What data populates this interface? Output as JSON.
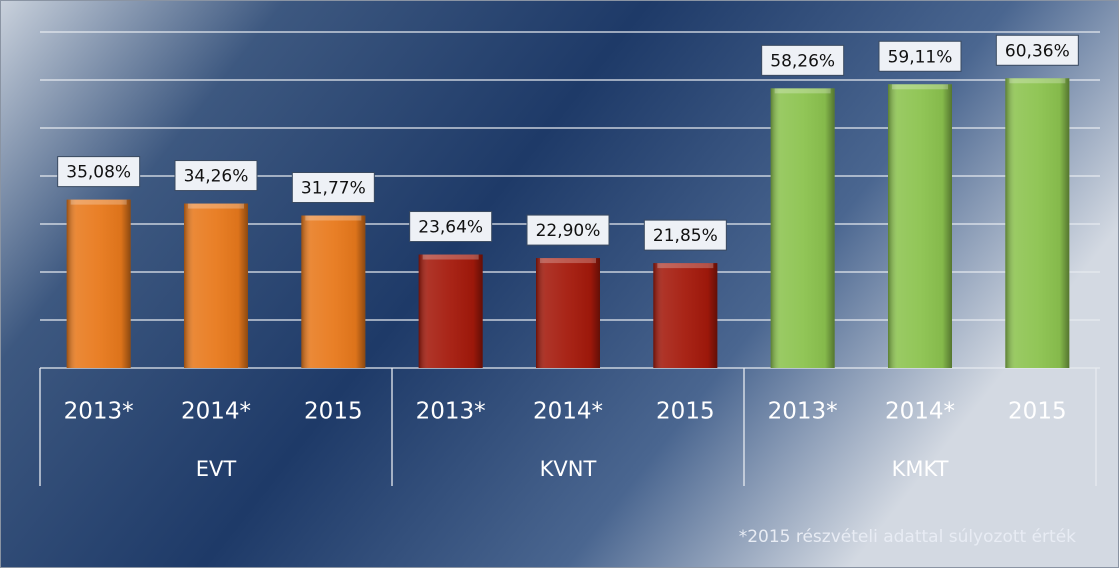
{
  "chart_data": {
    "type": "bar",
    "categories": [
      "2013*",
      "2014*",
      "2015"
    ],
    "series": [
      {
        "name": "EVT",
        "color": "#e8791c",
        "values": [
          35.08,
          34.26,
          31.77
        ],
        "value_labels": [
          "35,08%",
          "34,26%",
          "31,77%"
        ]
      },
      {
        "name": "KVNT",
        "color": "#a4190b",
        "values": [
          23.64,
          22.9,
          21.85
        ],
        "value_labels": [
          "23,64%",
          "22,90%",
          "21,85%"
        ]
      },
      {
        "name": "KMKT",
        "color": "#8cc34f",
        "values": [
          58.26,
          59.11,
          60.36
        ],
        "value_labels": [
          "58,26%",
          "59,11%",
          "60,36%"
        ]
      }
    ],
    "ylim": [
      0,
      70
    ],
    "yticks": [
      0,
      10,
      20,
      30,
      40,
      50,
      60,
      70
    ],
    "grid": true,
    "annotation": "*2015 részvételi adattal súlyozott érték"
  }
}
